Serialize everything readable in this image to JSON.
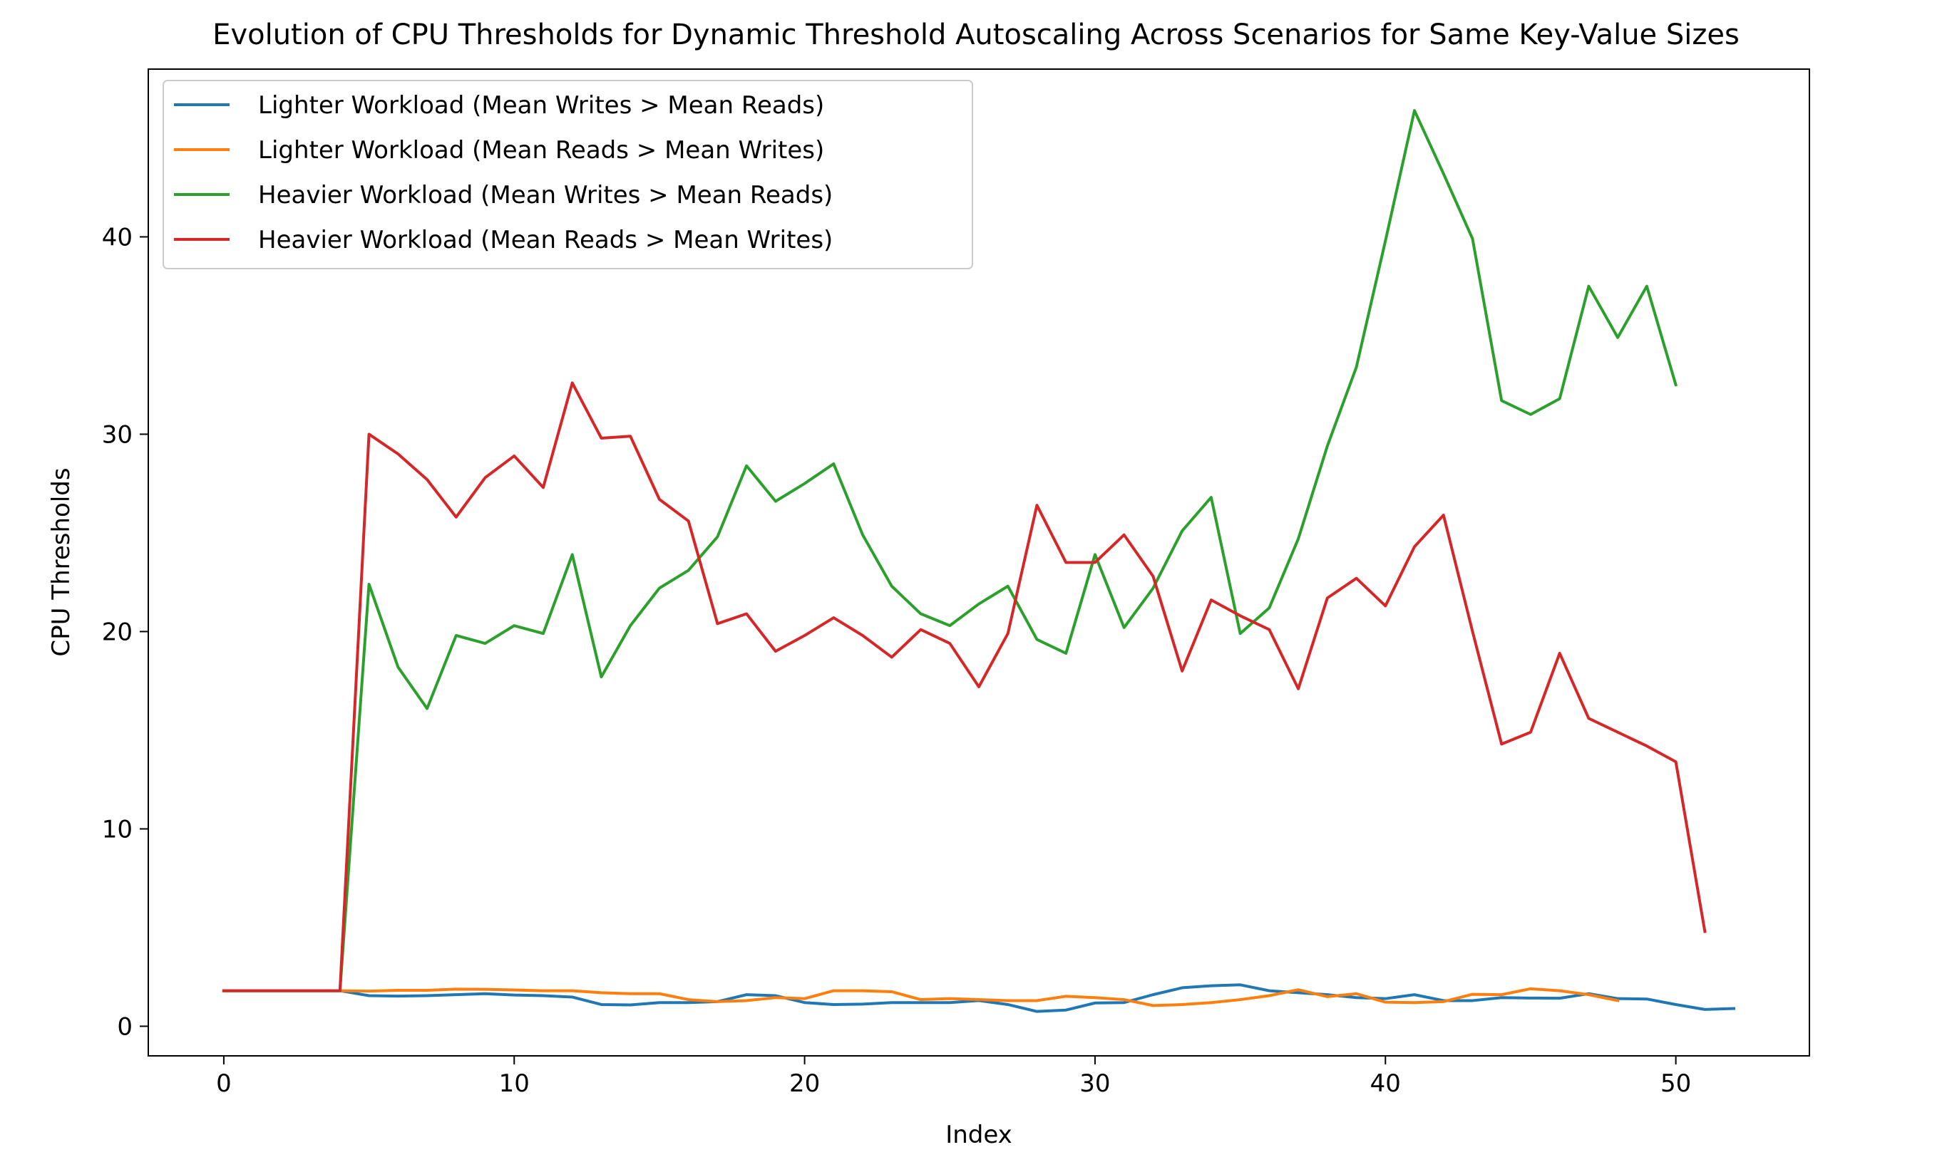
{
  "chart_data": {
    "type": "line",
    "title": "Evolution of CPU Thresholds for Dynamic Threshold Autoscaling Across Scenarios for Same Key-Value Sizes",
    "xlabel": "Index",
    "ylabel": "CPU Thresholds",
    "xlim": [
      -2.6,
      54.6
    ],
    "ylim": [
      -1.5,
      48.5
    ],
    "xticks": [
      0,
      10,
      20,
      30,
      40,
      50
    ],
    "yticks": [
      0,
      10,
      20,
      30,
      40
    ],
    "grid": false,
    "legend_position": "top-left",
    "series": [
      {
        "name": "Lighter Workload (Mean Writes > Mean Reads)",
        "color": "#1f77b4",
        "values": [
          1.8,
          1.8,
          1.8,
          1.8,
          1.8,
          1.55,
          1.53,
          1.55,
          1.6,
          1.65,
          1.58,
          1.55,
          1.48,
          1.1,
          1.08,
          1.2,
          1.2,
          1.25,
          1.6,
          1.55,
          1.2,
          1.1,
          1.12,
          1.2,
          1.2,
          1.2,
          1.3,
          1.1,
          0.75,
          0.82,
          1.18,
          1.2,
          1.6,
          1.95,
          2.05,
          2.1,
          1.8,
          1.7,
          1.6,
          1.45,
          1.4,
          1.6,
          1.3,
          1.3,
          1.45,
          1.43,
          1.42,
          1.65,
          1.4,
          1.38,
          1.1,
          0.85,
          0.9
        ]
      },
      {
        "name": "Lighter Workload (Mean Reads > Mean Writes)",
        "color": "#ff7f0e",
        "values": [
          1.8,
          1.8,
          1.8,
          1.8,
          1.8,
          1.78,
          1.82,
          1.82,
          1.88,
          1.87,
          1.84,
          1.8,
          1.8,
          1.7,
          1.65,
          1.65,
          1.35,
          1.25,
          1.3,
          1.45,
          1.4,
          1.8,
          1.8,
          1.75,
          1.35,
          1.4,
          1.35,
          1.3,
          1.3,
          1.52,
          1.45,
          1.35,
          1.05,
          1.1,
          1.2,
          1.35,
          1.55,
          1.85,
          1.5,
          1.65,
          1.22,
          1.2,
          1.25,
          1.62,
          1.6,
          1.9,
          1.8,
          1.6,
          1.3
        ]
      },
      {
        "name": "Heavier Workload (Mean Writes > Mean Reads)",
        "color": "#2ca02c",
        "values": [
          1.8,
          1.8,
          1.8,
          1.8,
          1.8,
          22.4,
          18.2,
          16.1,
          19.8,
          19.4,
          20.3,
          19.9,
          23.9,
          17.7,
          20.3,
          22.2,
          23.1,
          24.8,
          28.4,
          26.6,
          27.5,
          28.5,
          24.9,
          22.3,
          20.9,
          20.3,
          21.4,
          22.3,
          19.6,
          18.9,
          23.9,
          20.2,
          22.2,
          25.1,
          26.8,
          19.9,
          21.2,
          24.7,
          29.4,
          33.4,
          39.8,
          46.4,
          43.2,
          39.9,
          31.7,
          31.0,
          31.8,
          37.5,
          34.9,
          37.5,
          32.5
        ]
      },
      {
        "name": "Heavier Workload (Mean Reads > Mean Writes)",
        "color": "#d62728",
        "values": [
          1.8,
          1.8,
          1.8,
          1.8,
          1.8,
          30.0,
          29.0,
          27.7,
          25.8,
          27.8,
          28.9,
          27.3,
          32.6,
          29.8,
          29.9,
          26.7,
          25.6,
          20.4,
          20.9,
          19.0,
          19.8,
          20.7,
          19.8,
          18.7,
          20.1,
          19.4,
          17.2,
          19.9,
          26.4,
          23.5,
          23.5,
          24.9,
          22.8,
          18.0,
          21.6,
          20.8,
          20.1,
          17.1,
          21.7,
          22.7,
          21.3,
          24.3,
          25.9,
          20.0,
          14.3,
          14.9,
          18.9,
          15.6,
          14.9,
          14.2,
          13.4,
          4.8
        ]
      }
    ]
  }
}
